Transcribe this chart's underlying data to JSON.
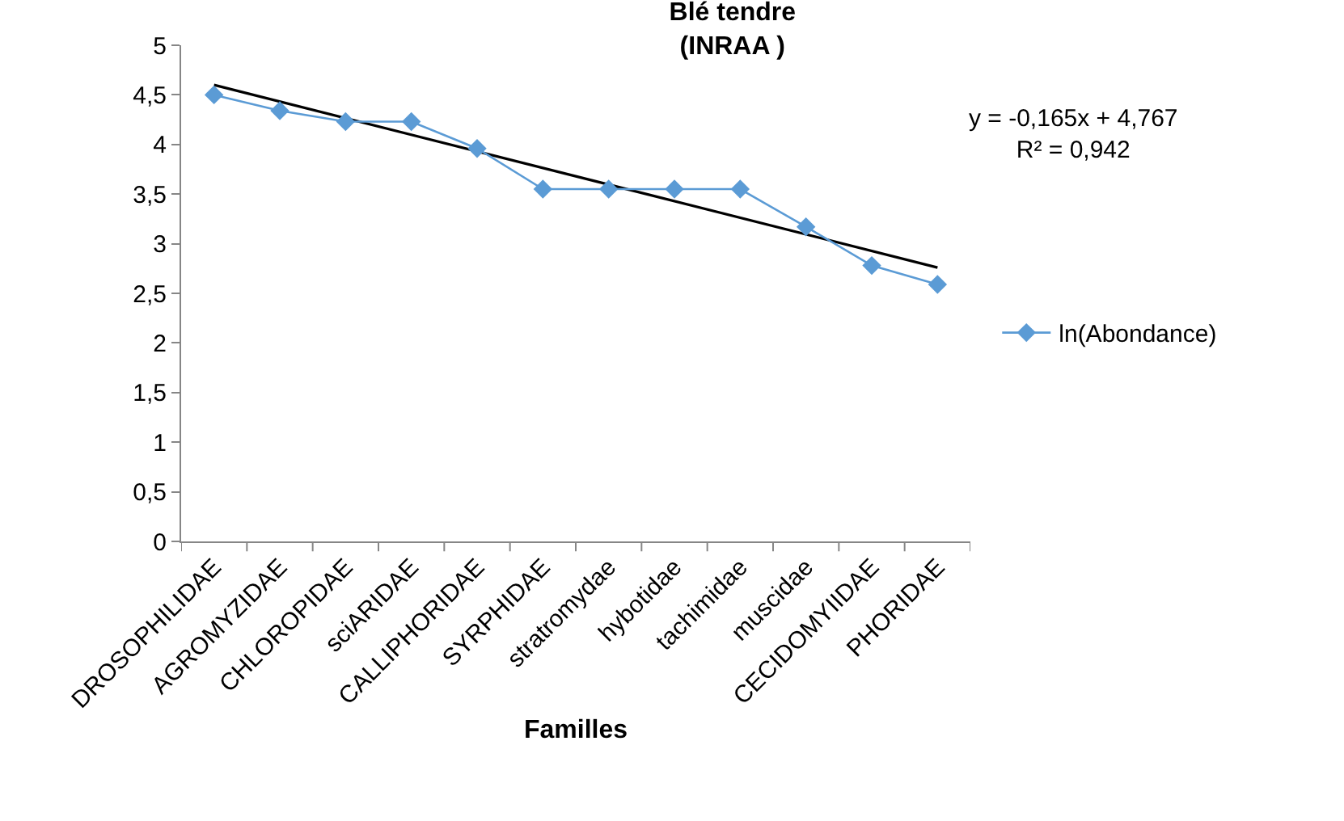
{
  "chart_data": {
    "type": "line",
    "title": "Blé tendre\n(INRAA )",
    "xlabel": "Familles",
    "categories": [
      "DROSOPHILIDAE",
      "AGROMYZIDAE",
      "CHLOROPIDAE",
      "sciARIDAE",
      "CALLIPHORIDAE",
      "SYRPHIDAE",
      "stratromydae",
      "hybotidae",
      "tachimidae",
      "muscidae",
      "CECIDOMYIIDAE",
      "PHORIDAE"
    ],
    "series": [
      {
        "name": "ln(Abondance)",
        "color": "#5b9bd5",
        "marker": "diamond",
        "values": [
          4.5,
          4.34,
          4.23,
          4.23,
          3.96,
          3.55,
          3.55,
          3.55,
          3.55,
          3.17,
          2.78,
          2.59
        ]
      },
      {
        "type": "line",
        "color": "#000000",
        "marker": "none",
        "x": [
          "DROSOPHILIDAE",
          "PHORIDAE"
        ],
        "values": [
          4.6,
          2.76
        ]
      }
    ],
    "ylim": [
      0,
      5
    ],
    "yticks": [
      0,
      {
        "value": 0.5,
        "label": "0,5"
      },
      1,
      {
        "value": 1.5,
        "label": "1,5"
      },
      2,
      {
        "value": 2.5,
        "label": "2,5"
      },
      3,
      {
        "value": 3.5,
        "label": "3,5"
      },
      4,
      {
        "value": 4.5,
        "label": "4,5"
      },
      5
    ],
    "annotations": [
      "y = -0,165x + 4,767\nR² = 0,942"
    ],
    "grid": false,
    "legend": "right"
  }
}
